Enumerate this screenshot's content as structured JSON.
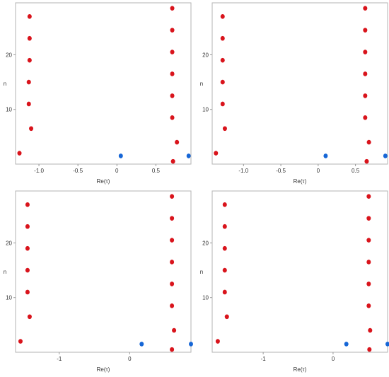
{
  "chart_data": [
    {
      "type": "scatter",
      "xlabel": "Re(τ)",
      "ylabel": "n",
      "xlim": [
        -1.3,
        0.95
      ],
      "ylim": [
        0,
        29.5
      ],
      "xticks": [
        -1.0,
        -0.5,
        0.0,
        0.5
      ],
      "xtick_labels": [
        "-1.0",
        "-0.5",
        "0",
        "0.5"
      ],
      "yticks": [
        10,
        20
      ],
      "ytick_labels": [
        "10",
        "20"
      ],
      "series": [
        {
          "color": "#d9141c",
          "points": [
            [
              -1.25,
              2
            ],
            [
              -1.1,
              6.5
            ],
            [
              -1.13,
              11
            ],
            [
              -1.13,
              15
            ],
            [
              -1.12,
              19
            ],
            [
              -1.12,
              23
            ],
            [
              -1.12,
              27
            ],
            [
              0.72,
              0.5
            ],
            [
              0.77,
              4
            ],
            [
              0.71,
              8.5
            ],
            [
              0.71,
              12.5
            ],
            [
              0.71,
              16.5
            ],
            [
              0.71,
              20.5
            ],
            [
              0.71,
              24.5
            ],
            [
              0.71,
              28.5
            ]
          ]
        },
        {
          "color": "#1666d6",
          "points": [
            [
              0.05,
              1.5
            ],
            [
              0.92,
              1.5
            ]
          ]
        }
      ]
    },
    {
      "type": "scatter",
      "xlabel": "Re(τ)",
      "ylabel": "n",
      "xlim": [
        -1.42,
        0.93
      ],
      "ylim": [
        0,
        29.5
      ],
      "xticks": [
        -1.0,
        -0.5,
        0.0,
        0.5
      ],
      "xtick_labels": [
        "-1.0",
        "-0.5",
        "0",
        "0.5"
      ],
      "yticks": [
        10,
        20
      ],
      "ytick_labels": [
        "10",
        "20"
      ],
      "series": [
        {
          "color": "#d9141c",
          "points": [
            [
              -1.37,
              2
            ],
            [
              -1.25,
              6.5
            ],
            [
              -1.28,
              11
            ],
            [
              -1.28,
              15
            ],
            [
              -1.28,
              19
            ],
            [
              -1.28,
              23
            ],
            [
              -1.28,
              27
            ],
            [
              0.65,
              0.5
            ],
            [
              0.68,
              4
            ],
            [
              0.63,
              8.5
            ],
            [
              0.63,
              12.5
            ],
            [
              0.63,
              16.5
            ],
            [
              0.63,
              20.5
            ],
            [
              0.63,
              24.5
            ],
            [
              0.63,
              28.5
            ]
          ]
        },
        {
          "color": "#1666d6",
          "points": [
            [
              0.1,
              1.5
            ],
            [
              0.9,
              1.5
            ]
          ]
        }
      ]
    },
    {
      "type": "scatter",
      "xlabel": "Re(τ)",
      "ylabel": "n",
      "xlim": [
        -1.62,
        0.87
      ],
      "ylim": [
        0,
        29.5
      ],
      "xticks": [
        -1,
        0
      ],
      "xtick_labels": [
        "-1",
        "0"
      ],
      "yticks": [
        10,
        20
      ],
      "ytick_labels": [
        "10",
        "20"
      ],
      "series": [
        {
          "color": "#d9141c",
          "points": [
            [
              -1.55,
              2
            ],
            [
              -1.42,
              6.5
            ],
            [
              -1.45,
              11
            ],
            [
              -1.45,
              15
            ],
            [
              -1.45,
              19
            ],
            [
              -1.45,
              23
            ],
            [
              -1.45,
              27
            ],
            [
              0.6,
              0.5
            ],
            [
              0.63,
              4
            ],
            [
              0.6,
              8.5
            ],
            [
              0.6,
              12.5
            ],
            [
              0.6,
              16.5
            ],
            [
              0.6,
              20.5
            ],
            [
              0.6,
              24.5
            ],
            [
              0.6,
              28.5
            ]
          ]
        },
        {
          "color": "#1666d6",
          "points": [
            [
              0.17,
              1.5
            ],
            [
              0.87,
              1.5
            ]
          ]
        }
      ]
    },
    {
      "type": "scatter",
      "xlabel": "Re(τ)",
      "ylabel": "n",
      "xlim": [
        -1.73,
        0.78
      ],
      "ylim": [
        0,
        29.5
      ],
      "xticks": [
        -1,
        0
      ],
      "xtick_labels": [
        "-1",
        "0"
      ],
      "yticks": [
        10,
        20
      ],
      "ytick_labels": [
        "10",
        "20"
      ],
      "series": [
        {
          "color": "#d9141c",
          "points": [
            [
              -1.65,
              2
            ],
            [
              -1.52,
              6.5
            ],
            [
              -1.55,
              11
            ],
            [
              -1.55,
              15
            ],
            [
              -1.55,
              19
            ],
            [
              -1.55,
              23
            ],
            [
              -1.55,
              27
            ],
            [
              0.52,
              0.5
            ],
            [
              0.53,
              4
            ],
            [
              0.51,
              8.5
            ],
            [
              0.51,
              12.5
            ],
            [
              0.51,
              16.5
            ],
            [
              0.51,
              20.5
            ],
            [
              0.51,
              24.5
            ],
            [
              0.51,
              28.5
            ]
          ]
        },
        {
          "color": "#1666d6",
          "points": [
            [
              0.19,
              1.5
            ],
            [
              0.78,
              1.5
            ]
          ]
        }
      ]
    }
  ]
}
